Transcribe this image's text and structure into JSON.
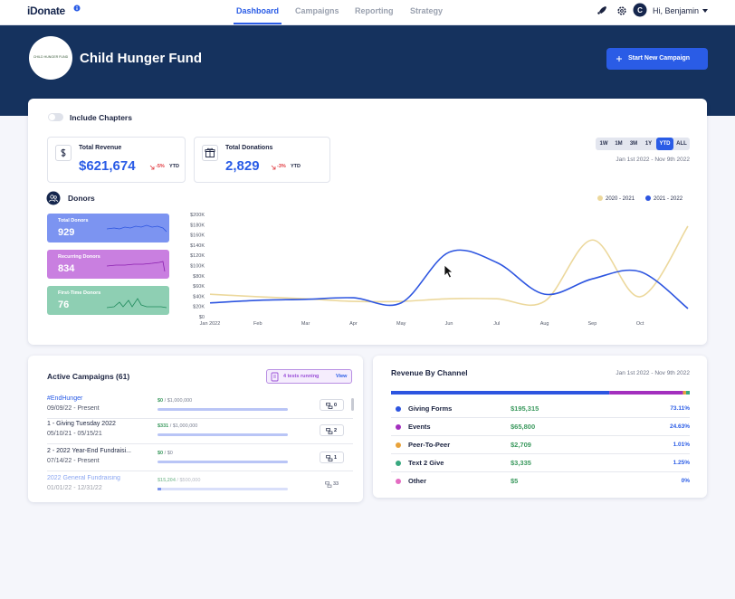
{
  "nav": {
    "brand": "iDonate",
    "tabs": [
      "Dashboard",
      "Campaigns",
      "Reporting",
      "Strategy"
    ],
    "selected_tab": "Dashboard",
    "avatar": "C",
    "greeting": "Hi, Benjamin"
  },
  "header": {
    "logo_text": "CHILD HUNGER FUND",
    "title": "Child Hunger Fund",
    "button": "Start New Campaign"
  },
  "overview": {
    "toggle": "Include Chapters",
    "kpis": [
      {
        "label": "Total Revenue",
        "value": "$621,674",
        "change": "-5%",
        "period": "YTD"
      },
      {
        "label": "Total Donations",
        "value": "2,829",
        "change": "-3%",
        "period": "YTD"
      }
    ],
    "ranges": [
      "1W",
      "1M",
      "3M",
      "1Y",
      "YTD",
      "ALL"
    ],
    "selected_range": "YTD",
    "date_range": "Jan 1st 2022 - Nov 9th 2022",
    "donors_title": "Donors",
    "donor_cards": [
      {
        "label": "Total Donors",
        "value": 929,
        "color": "#7c94f1"
      },
      {
        "label": "Recurring Donors",
        "value": 834,
        "color": "#c97fe0"
      },
      {
        "label": "First-Time Donors",
        "value": 76,
        "color": "#8ecfb3"
      }
    ]
  },
  "chart_data": {
    "type": "line",
    "smooth": true,
    "categories": [
      "Jan 2022",
      "Feb",
      "Mar",
      "Apr",
      "May",
      "Jun",
      "Jul",
      "Aug",
      "Sep",
      "Oct",
      null
    ],
    "series": [
      {
        "name": "2020 - 2021",
        "color": "#ecd89c",
        "values": [
          44000,
          39000,
          35000,
          30000,
          30000,
          35000,
          35000,
          30000,
          150000,
          39000,
          177000
        ]
      },
      {
        "name": "2021 - 2022",
        "color": "#2d55e0",
        "values": [
          27000,
          32000,
          34000,
          37000,
          27000,
          126000,
          106000,
          44000,
          74000,
          88000,
          16000
        ]
      }
    ],
    "ylim": [
      0,
      200000
    ],
    "yticks": [
      {
        "value": 0,
        "label": "$0"
      },
      {
        "value": 20000,
        "label": "$20K"
      },
      {
        "value": 40000,
        "label": "$40K"
      },
      {
        "value": 60000,
        "label": "$60K"
      },
      {
        "value": 80000,
        "label": "$80K"
      },
      {
        "value": 100000,
        "label": "$100K"
      },
      {
        "value": 120000,
        "label": "$120K"
      },
      {
        "value": 140000,
        "label": "$140K"
      },
      {
        "value": 160000,
        "label": "$160K"
      },
      {
        "value": 180000,
        "label": "$180K"
      },
      {
        "value": 200000,
        "label": "$200K"
      }
    ],
    "grid": false,
    "legend": "top-right"
  },
  "campaigns": {
    "title": "Active Campaigns (61)",
    "tests": "4 tests running",
    "view": "View",
    "rows": [
      {
        "name": "#EndHunger",
        "dates": "09/09/22 - Present",
        "raised": "$0",
        "goal": "/ $1,000,000",
        "count": 0
      },
      {
        "name": "1 - Giving Tuesday 2022",
        "dates": "05/10/21 - 05/15/21",
        "raised": "$331",
        "goal": "/ $1,000,000",
        "count": 2
      },
      {
        "name": "2 - 2022 Year-End Fundraisi...",
        "dates": "07/14/22 - Present",
        "raised": "$0",
        "goal": "/ $0",
        "count": 1
      },
      {
        "name": "2022 General Fundraising",
        "dates": "01/01/22 - 12/31/22",
        "raised": "$15,204",
        "goal": "/ $500,000",
        "count": 33
      }
    ]
  },
  "channels": {
    "title": "Revenue By Channel",
    "date_range": "Jan 1st 2022 - Nov 9th 2022",
    "items": [
      {
        "name": "Giving Forms",
        "amount": "$195,315",
        "share": 73.11,
        "share_label": "73.11%",
        "color": "#2d55e0"
      },
      {
        "name": "Events",
        "amount": "$65,800",
        "share": 24.63,
        "share_label": "24.63%",
        "color": "#a32fbe"
      },
      {
        "name": "Peer-To-Peer",
        "amount": "$2,709",
        "share": 1.01,
        "share_label": "1.01%",
        "color": "#e8a23a"
      },
      {
        "name": "Text 2 Give",
        "amount": "$3,335",
        "share": 1.25,
        "share_label": "1.25%",
        "color": "#38a87f"
      },
      {
        "name": "Other",
        "amount": "$5",
        "share": 0,
        "share_label": "0%",
        "color": "#e46cc2"
      }
    ]
  }
}
